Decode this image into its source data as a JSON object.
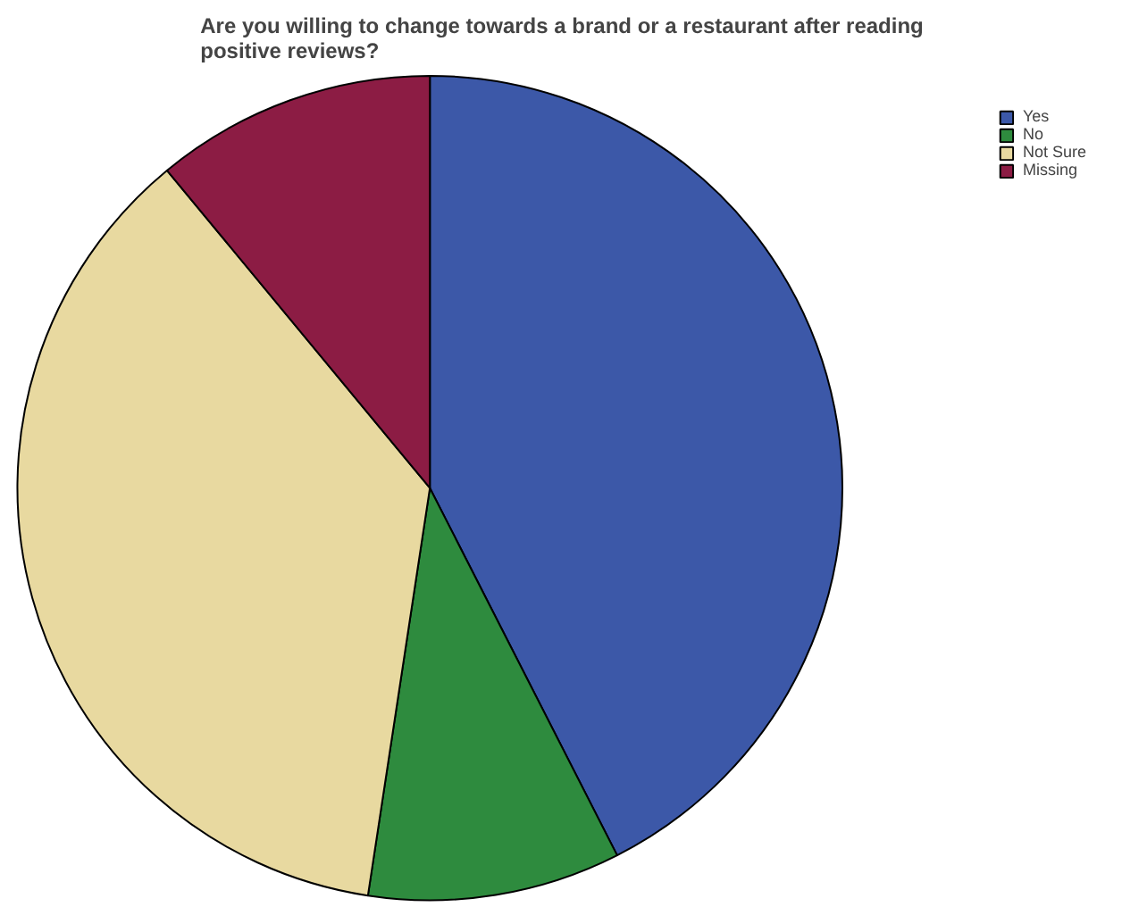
{
  "chart_data": {
    "type": "pie",
    "title": "Are you willing to change towards a brand or a restaurant after reading positive reviews?",
    "categories": [
      "Yes",
      "No",
      "Not Sure",
      "Missing"
    ],
    "values": [
      42.5,
      9.9,
      36.6,
      11.0
    ],
    "colors": [
      "#3c58a8",
      "#2e8b3e",
      "#e8d9a0",
      "#8c1c44"
    ],
    "legend": "top right"
  }
}
